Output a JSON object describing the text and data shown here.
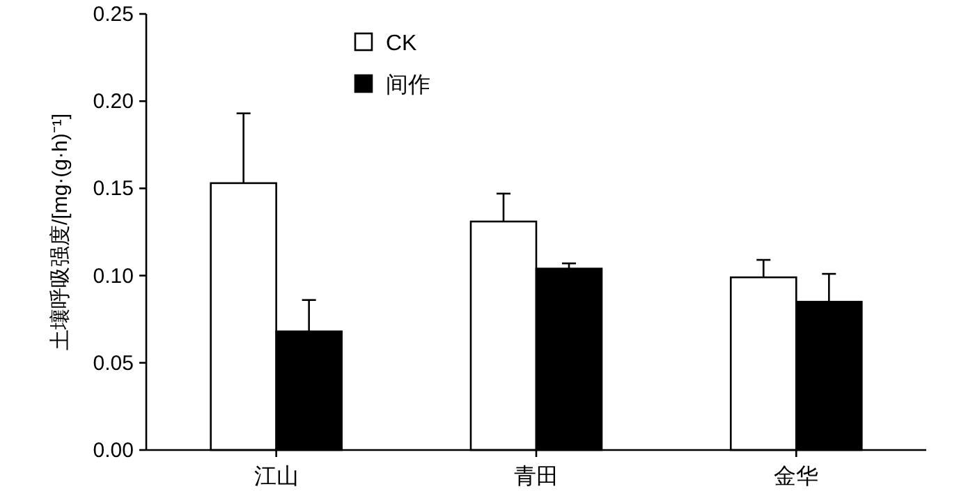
{
  "chart_data": {
    "type": "bar",
    "ylabel": "土壤呼吸强度/[mg·(g·h)⁻¹]",
    "categories": [
      "江山",
      "青田",
      "金华"
    ],
    "series": [
      {
        "name": "CK",
        "color": "#ffffff",
        "values": [
          0.153,
          0.131,
          0.099
        ],
        "errors": [
          [
            0.153,
            0.193
          ],
          [
            0.131,
            0.147
          ],
          [
            0.099,
            0.109
          ]
        ]
      },
      {
        "name": "间作",
        "color": "#000000",
        "values": [
          0.068,
          0.104,
          0.085
        ],
        "errors": [
          [
            0.068,
            0.086
          ],
          [
            0.104,
            0.107
          ],
          [
            0.085,
            0.101
          ]
        ]
      }
    ],
    "ylim": [
      0,
      0.25
    ],
    "yticks": [
      {
        "value": 0,
        "label": "0.00"
      },
      {
        "value": 0.05,
        "label": "0.05"
      },
      {
        "value": 0.1,
        "label": "0.10"
      },
      {
        "value": 0.15,
        "label": "0.15"
      },
      {
        "value": 0.2,
        "label": "0.20"
      },
      {
        "value": 0.25,
        "label": "0.25"
      }
    ],
    "legend": "top left",
    "grid": false
  }
}
